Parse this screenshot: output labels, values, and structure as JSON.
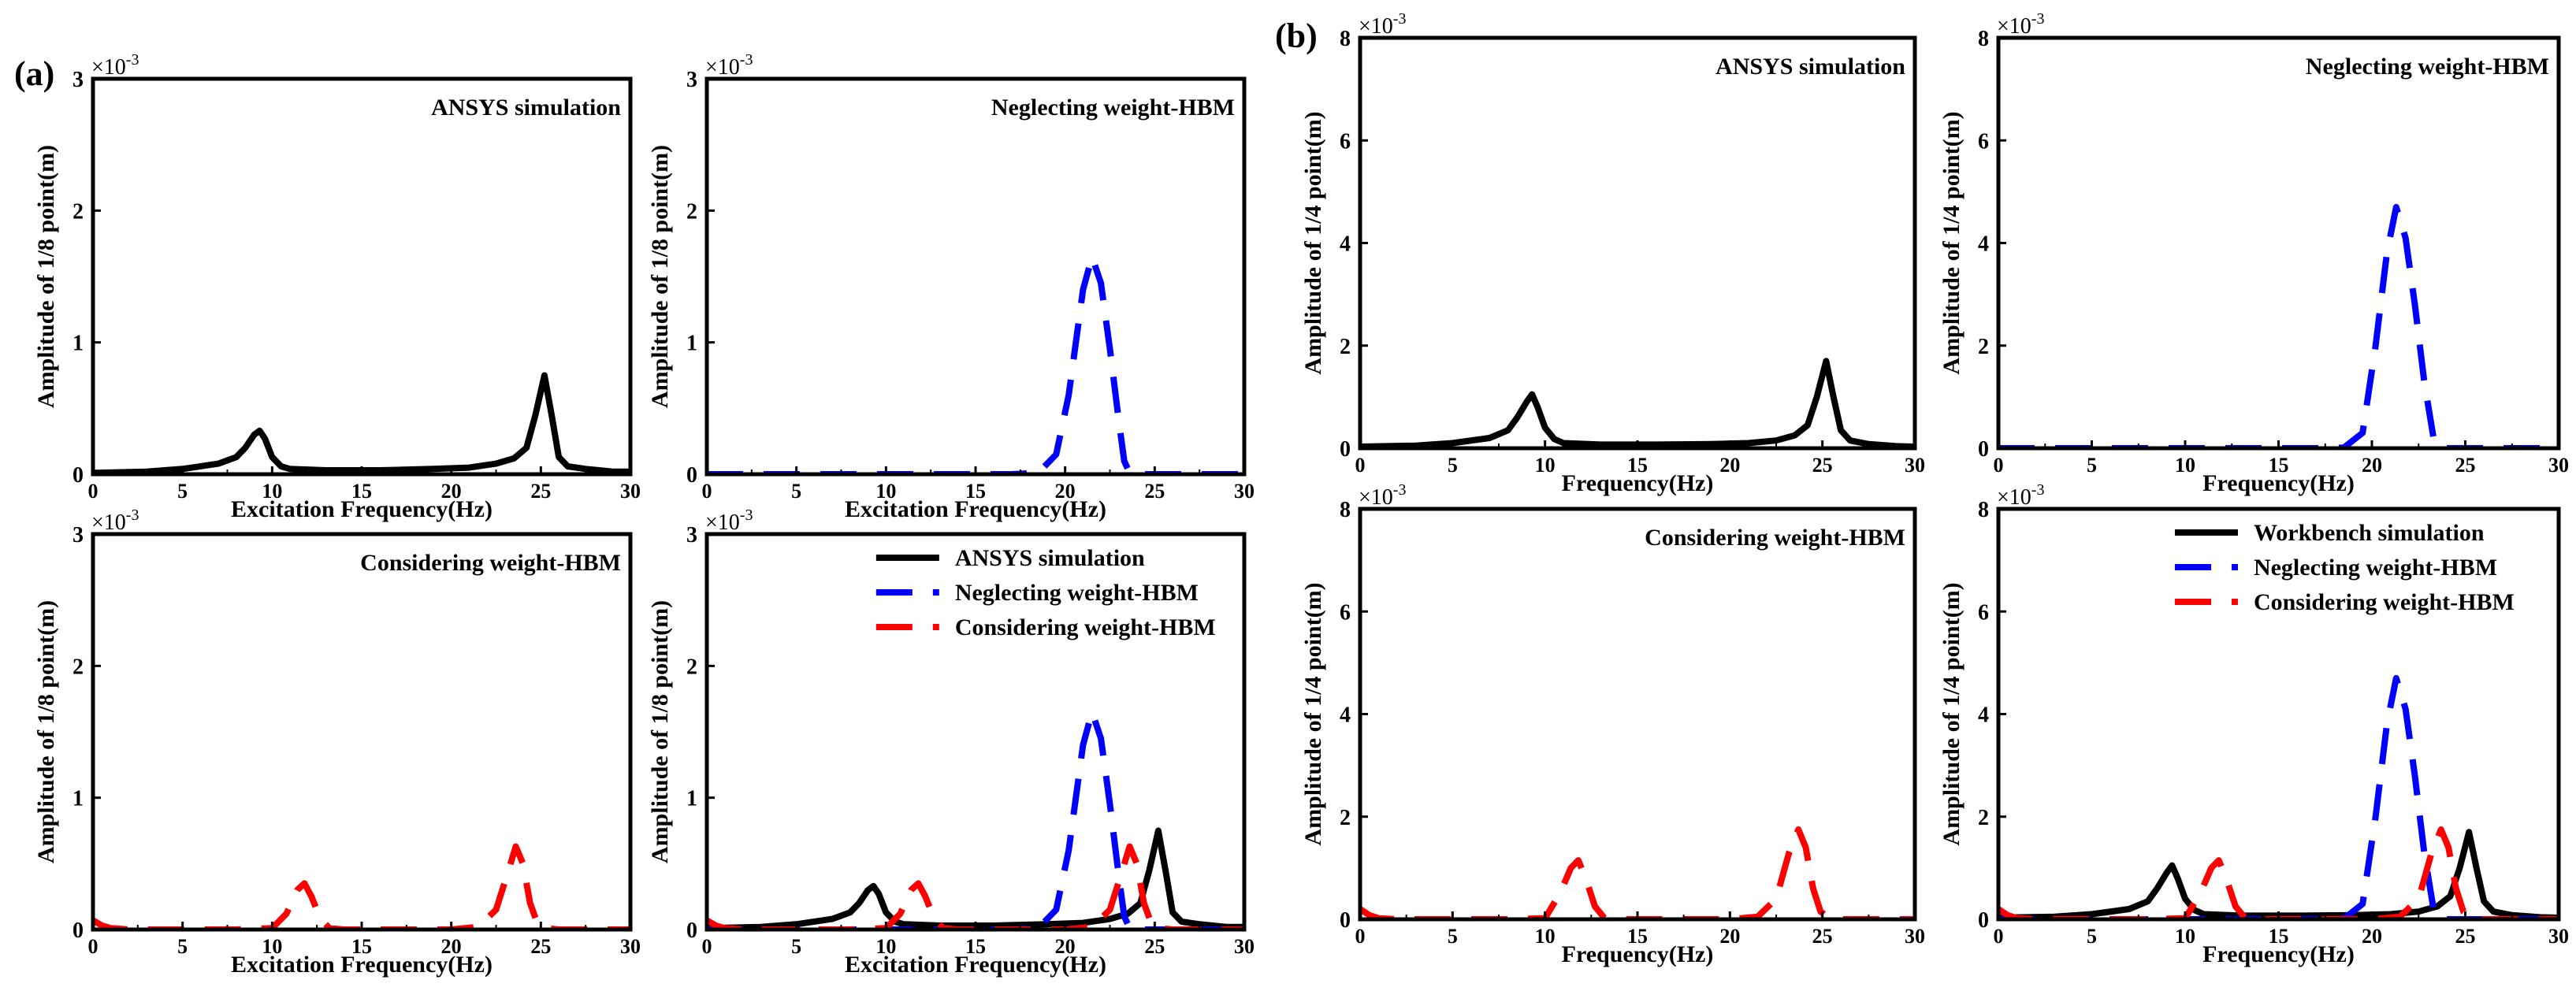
{
  "panel_labels": [
    "(a)",
    "(b)"
  ],
  "colors": {
    "ansys": "#000000",
    "neglecting": "#0000ff",
    "considering": "#ff0000",
    "axis": "#000000"
  },
  "chart_data": [
    {
      "id": "a1",
      "type": "line",
      "title": "ANSYS simulation",
      "xlabel": "Excitation Frequency(Hz)",
      "ylabel": "Amplitude of 1/8 point(m)",
      "xlim": [
        0,
        30
      ],
      "ylim": [
        0,
        3
      ],
      "xticks": [
        0,
        5,
        10,
        15,
        20,
        25,
        30
      ],
      "yticks": [
        0,
        1,
        2,
        3
      ],
      "exponent_base": "×10",
      "exponent": "-3",
      "series": [
        {
          "name": "ANSYS simulation",
          "color": "#000000",
          "dash": "solid",
          "x": [
            0,
            3,
            5,
            7,
            8,
            8.5,
            9,
            9.3,
            9.6,
            10,
            10.5,
            11,
            13,
            16,
            19,
            21,
            22.5,
            23.5,
            24.2,
            24.7,
            25.2,
            25.6,
            26,
            26.5,
            27.5,
            29,
            30
          ],
          "y": [
            0.01,
            0.02,
            0.04,
            0.08,
            0.13,
            0.2,
            0.3,
            0.33,
            0.27,
            0.13,
            0.06,
            0.04,
            0.03,
            0.03,
            0.04,
            0.05,
            0.08,
            0.12,
            0.2,
            0.45,
            0.75,
            0.45,
            0.13,
            0.06,
            0.04,
            0.02,
            0.02
          ]
        }
      ]
    },
    {
      "id": "a2",
      "type": "line",
      "title": "Neglecting weight-HBM",
      "xlabel": "Excitation Frequency(Hz)",
      "ylabel": "Amplitude of 1/8 point(m)",
      "xlim": [
        0,
        30
      ],
      "ylim": [
        0,
        3
      ],
      "xticks": [
        0,
        5,
        10,
        15,
        20,
        25,
        30
      ],
      "yticks": [
        0,
        1,
        2,
        3
      ],
      "exponent_base": "×10",
      "exponent": "-3",
      "series": [
        {
          "name": "Neglecting weight-HBM",
          "color": "#0000ff",
          "dash": "dashed",
          "x": [
            0,
            5,
            10,
            15,
            17,
            18.5,
            19.5,
            20.2,
            21,
            21.5,
            22,
            22.5,
            23,
            23.3,
            23.6,
            24,
            25,
            27,
            30
          ],
          "y": [
            0,
            0,
            0,
            0,
            0,
            0.01,
            0.15,
            0.6,
            1.4,
            1.65,
            1.45,
            0.95,
            0.4,
            0.1,
            0.01,
            0,
            0,
            0,
            0
          ]
        }
      ]
    },
    {
      "id": "a3",
      "type": "line",
      "title": "Considering weight-HBM",
      "xlabel": "Excitation Frequency(Hz)",
      "ylabel": "Amplitude of 1/8 point(m)",
      "xlim": [
        0,
        30
      ],
      "ylim": [
        0,
        3
      ],
      "xticks": [
        0,
        5,
        10,
        15,
        20,
        25,
        30
      ],
      "yticks": [
        0,
        1,
        2,
        3
      ],
      "exponent_base": "×10",
      "exponent": "-3",
      "series": [
        {
          "name": "Considering weight-HBM",
          "color": "#ff0000",
          "dash": "dashed",
          "x": [
            0,
            0.5,
            1,
            2,
            5,
            8,
            10,
            10.8,
            11.4,
            11.8,
            12.2,
            12.7,
            13.2,
            14,
            17,
            20,
            21.5,
            22.5,
            23.2,
            23.6,
            24,
            24.4,
            24.8,
            25.3,
            26,
            28,
            30
          ],
          "y": [
            0.07,
            0.03,
            0.01,
            0,
            0,
            0,
            0.01,
            0.12,
            0.3,
            0.35,
            0.25,
            0.08,
            0.01,
            0,
            0,
            0,
            0.02,
            0.15,
            0.45,
            0.63,
            0.5,
            0.2,
            0.05,
            0.01,
            0,
            0,
            0
          ]
        }
      ]
    },
    {
      "id": "a4",
      "type": "line",
      "title": "",
      "xlabel": "Excitation Frequency(Hz)",
      "ylabel": "Amplitude of 1/8 point(m)",
      "xlim": [
        0,
        30
      ],
      "ylim": [
        0,
        3
      ],
      "xticks": [
        0,
        5,
        10,
        15,
        20,
        25,
        30
      ],
      "yticks": [
        0,
        1,
        2,
        3
      ],
      "exponent_base": "×10",
      "exponent": "-3",
      "legend": {
        "placement": "top-right",
        "entries": [
          "ANSYS simulation",
          "Neglecting weight-HBM",
          "Considering weight-HBM"
        ]
      },
      "series": [
        {
          "name": "ANSYS simulation",
          "color": "#000000",
          "dash": "solid",
          "x": [
            0,
            3,
            5,
            7,
            8,
            8.5,
            9,
            9.3,
            9.6,
            10,
            10.5,
            11,
            13,
            16,
            19,
            21,
            22.5,
            23.5,
            24.2,
            24.7,
            25.2,
            25.6,
            26,
            26.5,
            27.5,
            29,
            30
          ],
          "y": [
            0.01,
            0.02,
            0.04,
            0.08,
            0.13,
            0.2,
            0.3,
            0.33,
            0.27,
            0.13,
            0.06,
            0.04,
            0.03,
            0.03,
            0.04,
            0.05,
            0.08,
            0.12,
            0.2,
            0.45,
            0.75,
            0.45,
            0.13,
            0.06,
            0.04,
            0.02,
            0.02
          ]
        },
        {
          "name": "Neglecting weight-HBM",
          "color": "#0000ff",
          "dash": "dashed",
          "x": [
            0,
            5,
            10,
            15,
            17,
            18.5,
            19.5,
            20.2,
            21,
            21.5,
            22,
            22.5,
            23,
            23.3,
            23.6,
            24,
            25,
            27,
            30
          ],
          "y": [
            0,
            0,
            0,
            0,
            0,
            0.01,
            0.15,
            0.6,
            1.4,
            1.65,
            1.45,
            0.95,
            0.4,
            0.1,
            0.01,
            0,
            0,
            0,
            0
          ]
        },
        {
          "name": "Considering weight-HBM",
          "color": "#ff0000",
          "dash": "dashed",
          "x": [
            0,
            0.5,
            1,
            2,
            5,
            8,
            10,
            10.8,
            11.4,
            11.8,
            12.2,
            12.7,
            13.2,
            14,
            17,
            20,
            21.5,
            22.5,
            23.2,
            23.6,
            24,
            24.4,
            24.8,
            25.3,
            26,
            28,
            30
          ],
          "y": [
            0.07,
            0.03,
            0.01,
            0,
            0,
            0,
            0.01,
            0.12,
            0.3,
            0.35,
            0.25,
            0.08,
            0.01,
            0,
            0,
            0,
            0.02,
            0.15,
            0.45,
            0.63,
            0.5,
            0.2,
            0.05,
            0.01,
            0,
            0,
            0
          ]
        }
      ]
    },
    {
      "id": "b1",
      "type": "line",
      "title": "ANSYS simulation",
      "xlabel": "Frequency(Hz)",
      "ylabel": "Amplitude of 1/4 point(m)",
      "xlim": [
        0,
        30
      ],
      "ylim": [
        0,
        8
      ],
      "xticks": [
        0,
        5,
        10,
        15,
        20,
        25,
        30
      ],
      "yticks": [
        0,
        2,
        4,
        6,
        8
      ],
      "exponent_base": "×10",
      "exponent": "-3",
      "series": [
        {
          "name": "ANSYS simulation",
          "color": "#000000",
          "dash": "solid",
          "x": [
            0,
            3,
            5,
            7,
            8,
            8.5,
            9,
            9.3,
            9.6,
            10,
            10.5,
            11,
            13,
            16,
            19,
            21,
            22.5,
            23.5,
            24.2,
            24.7,
            25.2,
            25.6,
            26,
            26.5,
            27.5,
            29,
            30
          ],
          "y": [
            0.03,
            0.05,
            0.1,
            0.2,
            0.35,
            0.6,
            0.9,
            1.05,
            0.8,
            0.4,
            0.18,
            0.1,
            0.07,
            0.07,
            0.08,
            0.1,
            0.15,
            0.25,
            0.45,
            1.0,
            1.7,
            1.0,
            0.35,
            0.15,
            0.08,
            0.04,
            0.03
          ]
        }
      ]
    },
    {
      "id": "b2",
      "type": "line",
      "title": "Neglecting weight-HBM",
      "xlabel": "Frequency(Hz)",
      "ylabel": "Amplitude of 1/4 point(m)",
      "xlim": [
        0,
        30
      ],
      "ylim": [
        0,
        8
      ],
      "xticks": [
        0,
        5,
        10,
        15,
        20,
        25,
        30
      ],
      "yticks": [
        0,
        2,
        4,
        6,
        8
      ],
      "exponent_base": "×10",
      "exponent": "-3",
      "series": [
        {
          "name": "Neglecting weight-HBM",
          "color": "#0000ff",
          "dash": "dashed",
          "x": [
            0,
            5,
            10,
            15,
            17,
            18.5,
            19.5,
            20.2,
            20.8,
            21.3,
            21.8,
            22.3,
            22.8,
            23.3,
            23.6,
            24,
            25,
            27,
            30
          ],
          "y": [
            0,
            0,
            0,
            0,
            0,
            0.01,
            0.3,
            2.0,
            3.8,
            4.7,
            4.1,
            2.8,
            1.3,
            0.2,
            0.01,
            0,
            0,
            0,
            0
          ]
        }
      ]
    },
    {
      "id": "b3",
      "type": "line",
      "title": "Considering weight-HBM",
      "xlabel": "Frequency(Hz)",
      "ylabel": "Amplitude of 1/4 point(m)",
      "xlim": [
        0,
        30
      ],
      "ylim": [
        0,
        8
      ],
      "xticks": [
        0,
        5,
        10,
        15,
        20,
        25,
        30
      ],
      "yticks": [
        0,
        2,
        4,
        6,
        8
      ],
      "exponent_base": "×10",
      "exponent": "-3",
      "series": [
        {
          "name": "Considering weight-HBM",
          "color": "#ff0000",
          "dash": "dashed",
          "x": [
            0,
            0.5,
            1,
            2,
            5,
            8,
            10,
            10.8,
            11.4,
            11.8,
            12.2,
            12.7,
            13.2,
            14,
            17,
            20,
            21.5,
            22.5,
            23.2,
            23.7,
            24.1,
            24.5,
            24.9,
            25.4,
            26,
            28,
            30
          ],
          "y": [
            0.2,
            0.08,
            0.02,
            0,
            0,
            0,
            0.02,
            0.5,
            1.0,
            1.15,
            0.8,
            0.25,
            0.03,
            0,
            0,
            0,
            0.05,
            0.4,
            1.3,
            1.75,
            1.4,
            0.6,
            0.15,
            0.02,
            0,
            0,
            0
          ]
        }
      ]
    },
    {
      "id": "b4",
      "type": "line",
      "title": "",
      "xlabel": "Frequency(Hz)",
      "ylabel": "Amplitude of 1/4 point(m)",
      "xlim": [
        0,
        30
      ],
      "ylim": [
        0,
        8
      ],
      "xticks": [
        0,
        5,
        10,
        15,
        20,
        25,
        30
      ],
      "yticks": [
        0,
        2,
        4,
        6,
        8
      ],
      "exponent_base": "×10",
      "exponent": "-3",
      "legend": {
        "placement": "top-right",
        "entries": [
          "Workbench simulation",
          "Neglecting weight-HBM",
          "Considering weight-HBM"
        ]
      },
      "series": [
        {
          "name": "Workbench simulation",
          "color": "#000000",
          "dash": "solid",
          "x": [
            0,
            3,
            5,
            7,
            8,
            8.5,
            9,
            9.3,
            9.6,
            10,
            10.5,
            11,
            13,
            16,
            19,
            21,
            22.5,
            23.5,
            24.2,
            24.7,
            25.2,
            25.6,
            26,
            26.5,
            27.5,
            29,
            30
          ],
          "y": [
            0.03,
            0.05,
            0.1,
            0.2,
            0.35,
            0.6,
            0.9,
            1.05,
            0.8,
            0.4,
            0.18,
            0.1,
            0.07,
            0.07,
            0.08,
            0.1,
            0.15,
            0.25,
            0.45,
            1.0,
            1.7,
            1.0,
            0.35,
            0.15,
            0.08,
            0.04,
            0.03
          ]
        },
        {
          "name": "Neglecting weight-HBM",
          "color": "#0000ff",
          "dash": "dashed",
          "x": [
            0,
            5,
            10,
            15,
            17,
            18.5,
            19.5,
            20.2,
            20.8,
            21.3,
            21.8,
            22.3,
            22.8,
            23.3,
            23.6,
            24,
            25,
            27,
            30
          ],
          "y": [
            0,
            0,
            0,
            0,
            0,
            0.01,
            0.3,
            2.0,
            3.8,
            4.7,
            4.1,
            2.8,
            1.3,
            0.2,
            0.01,
            0,
            0,
            0,
            0
          ]
        },
        {
          "name": "Considering weight-HBM",
          "color": "#ff0000",
          "dash": "dashed",
          "x": [
            0,
            0.5,
            1,
            2,
            5,
            8,
            10,
            10.8,
            11.4,
            11.8,
            12.2,
            12.7,
            13.2,
            14,
            17,
            20,
            21.5,
            22.5,
            23.2,
            23.7,
            24.1,
            24.5,
            24.9,
            25.4,
            26,
            28,
            30
          ],
          "y": [
            0.2,
            0.08,
            0.02,
            0,
            0,
            0,
            0.02,
            0.5,
            1.0,
            1.15,
            0.8,
            0.25,
            0.03,
            0,
            0,
            0,
            0.05,
            0.4,
            1.3,
            1.75,
            1.4,
            0.6,
            0.15,
            0.02,
            0,
            0,
            0
          ]
        }
      ]
    }
  ]
}
